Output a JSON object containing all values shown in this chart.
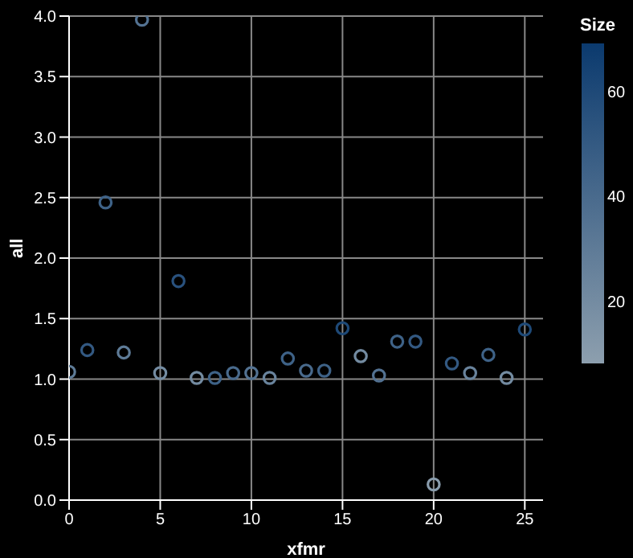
{
  "chart_data": {
    "type": "scatter",
    "xlabel": "xfmr",
    "ylabel": "all",
    "clabel": "Size",
    "x": [
      0,
      1,
      2,
      3,
      4,
      5,
      6,
      7,
      8,
      9,
      10,
      11,
      12,
      13,
      14,
      15,
      16,
      17,
      18,
      19,
      20,
      21,
      22,
      23,
      24,
      25
    ],
    "values": [
      1.06,
      1.24,
      2.46,
      1.22,
      3.97,
      1.05,
      1.81,
      1.01,
      1.01,
      1.05,
      1.05,
      1.01,
      1.17,
      1.07,
      1.07,
      1.42,
      1.19,
      1.03,
      1.31,
      1.31,
      0.13,
      1.13,
      1.05,
      1.2,
      1.01,
      1.41
    ],
    "cvalues": [
      30,
      50,
      45,
      30,
      35,
      20,
      55,
      20,
      45,
      40,
      35,
      25,
      45,
      40,
      45,
      60,
      20,
      35,
      45,
      50,
      10,
      50,
      25,
      45,
      20,
      60
    ],
    "clim": [
      8,
      69
    ],
    "cticks": [
      20,
      40,
      60
    ],
    "xlim": [
      0,
      26
    ],
    "xticks": [
      0,
      5,
      10,
      15,
      20,
      25
    ],
    "ylim": [
      0,
      4
    ],
    "yticks": [
      {
        "value": 0,
        "label": "0.0"
      },
      {
        "value": 0.5,
        "label": "0.5"
      },
      {
        "value": 1,
        "label": "1.0"
      },
      {
        "value": 1.5,
        "label": "1.5"
      },
      {
        "value": 2,
        "label": "2.0"
      },
      {
        "value": 2.5,
        "label": "2.5"
      },
      {
        "value": 3,
        "label": "3.0"
      },
      {
        "value": 3.5,
        "label": "3.5"
      },
      {
        "value": 4,
        "label": "4.0"
      }
    ],
    "grid": true,
    "marker": "circle"
  }
}
